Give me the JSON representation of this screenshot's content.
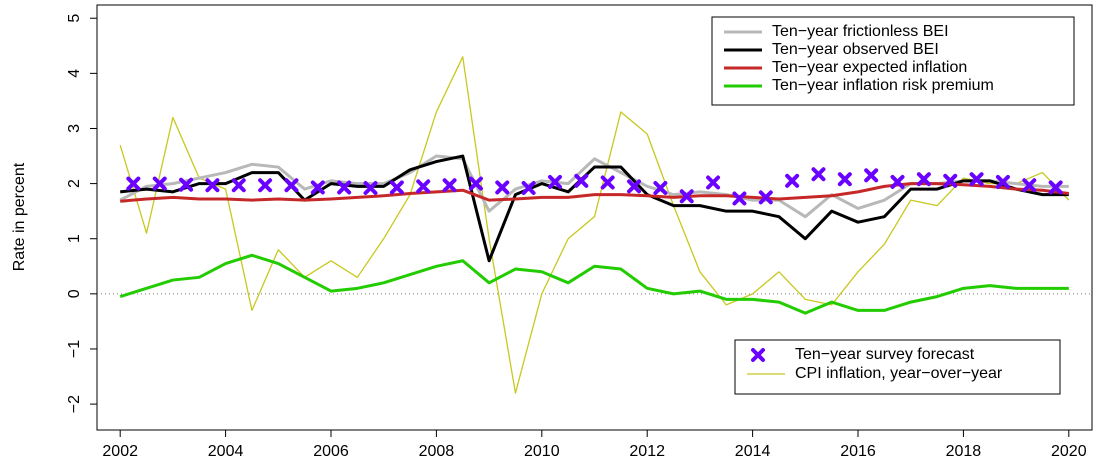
{
  "chart_data": {
    "type": "line",
    "y_label": "Rate in percent",
    "xlim": [
      2001.56,
      2020.44
    ],
    "ylim": [
      -2.47,
      5.24
    ],
    "xticks": [
      2002,
      2004,
      2006,
      2008,
      2010,
      2012,
      2014,
      2016,
      2018,
      2020
    ],
    "yticks": [
      {
        "value": -2,
        "label": "−2"
      },
      {
        "value": -1,
        "label": "−1"
      },
      0,
      1,
      2,
      3,
      4,
      5
    ],
    "reference_line": 0,
    "x": [
      2002,
      2002.5,
      2003,
      2003.5,
      2004,
      2004.5,
      2005,
      2005.5,
      2006,
      2006.5,
      2007,
      2007.5,
      2008,
      2008.5,
      2009,
      2009.5,
      2010,
      2010.5,
      2011,
      2011.5,
      2012,
      2012.5,
      2013,
      2013.5,
      2014,
      2014.5,
      2015,
      2015.5,
      2016,
      2016.5,
      2017,
      2017.5,
      2018,
      2018.5,
      2019,
      2019.5,
      2020
    ],
    "series": [
      {
        "name": "Ten−year frictionless BEI",
        "type": "line",
        "legend": "top-right",
        "color": "#b8b8b8",
        "linewidth": 3,
        "values": [
          1.7,
          1.95,
          2.0,
          2.1,
          2.2,
          2.35,
          2.3,
          1.9,
          2.05,
          2.0,
          2.0,
          2.2,
          2.5,
          2.45,
          1.5,
          1.9,
          2.05,
          2.0,
          2.45,
          2.2,
          1.95,
          1.8,
          1.85,
          1.8,
          1.7,
          1.7,
          1.4,
          1.8,
          1.55,
          1.7,
          2.0,
          2.0,
          2.05,
          2.05,
          2.0,
          1.95,
          1.95
        ]
      },
      {
        "name": "Ten−year observed BEI",
        "type": "line",
        "legend": "top-right",
        "color": "#000000",
        "linewidth": 3,
        "values": [
          1.85,
          1.9,
          1.85,
          2.0,
          2.0,
          2.2,
          2.2,
          1.7,
          2.0,
          1.95,
          1.95,
          2.25,
          2.4,
          2.5,
          0.6,
          1.8,
          2.0,
          1.85,
          2.3,
          2.3,
          1.8,
          1.6,
          1.6,
          1.5,
          1.5,
          1.4,
          1.0,
          1.5,
          1.3,
          1.4,
          1.9,
          1.9,
          2.05,
          2.05,
          1.9,
          1.8,
          1.8
        ]
      },
      {
        "name": "Ten−year expected inflation",
        "type": "line",
        "legend": "top-right",
        "color": "#c62828",
        "linewidth": 3,
        "values": [
          1.68,
          1.72,
          1.75,
          1.72,
          1.72,
          1.7,
          1.72,
          1.7,
          1.72,
          1.75,
          1.78,
          1.82,
          1.85,
          1.88,
          1.7,
          1.72,
          1.75,
          1.75,
          1.8,
          1.8,
          1.78,
          1.75,
          1.78,
          1.78,
          1.75,
          1.72,
          1.75,
          1.78,
          1.85,
          1.95,
          2.0,
          2.0,
          1.98,
          1.95,
          1.9,
          1.88,
          1.82
        ]
      },
      {
        "name": "Ten−year inflation risk premium",
        "type": "line",
        "legend": "top-right",
        "color": "#22cc00",
        "linewidth": 3,
        "values": [
          -0.05,
          0.1,
          0.25,
          0.3,
          0.55,
          0.7,
          0.55,
          0.3,
          0.05,
          0.1,
          0.2,
          0.35,
          0.5,
          0.6,
          0.2,
          0.45,
          0.4,
          0.2,
          0.5,
          0.45,
          0.1,
          0.0,
          0.05,
          -0.1,
          -0.1,
          -0.15,
          -0.35,
          -0.15,
          -0.3,
          -0.3,
          -0.15,
          -0.05,
          0.1,
          0.15,
          0.1,
          0.1,
          0.1
        ]
      },
      {
        "name": "Ten−year survey forecast",
        "type": "scatter",
        "legend": "bottom-right",
        "color": "#6a00ff",
        "x": [
          2002.25,
          2002.75,
          2003.25,
          2003.75,
          2004.25,
          2004.75,
          2005.25,
          2005.75,
          2006.25,
          2006.75,
          2007.25,
          2007.75,
          2008.25,
          2008.75,
          2009.25,
          2009.75,
          2010.25,
          2010.75,
          2011.25,
          2011.75,
          2012.25,
          2012.75,
          2013.25,
          2013.75,
          2014.25,
          2014.75,
          2015.25,
          2015.75,
          2016.25,
          2016.75,
          2017.25,
          2017.75,
          2018.25,
          2018.75,
          2019.25,
          2019.75
        ],
        "values": [
          2.0,
          2.0,
          1.98,
          1.97,
          1.97,
          1.97,
          1.97,
          1.93,
          1.93,
          1.92,
          1.93,
          1.95,
          1.97,
          2.0,
          1.93,
          1.92,
          2.03,
          2.05,
          2.02,
          1.95,
          1.92,
          1.77,
          2.02,
          1.73,
          1.75,
          2.05,
          2.17,
          2.08,
          2.15,
          2.03,
          2.08,
          2.05,
          2.08,
          2.03,
          1.97,
          1.93
        ]
      },
      {
        "name": "CPI inflation, year−over−year",
        "type": "line",
        "legend": "bottom-right",
        "color": "#c8c81e",
        "linewidth": 1.3,
        "values": [
          2.7,
          1.1,
          3.2,
          2.1,
          1.9,
          -0.3,
          0.8,
          0.3,
          0.6,
          0.3,
          1.0,
          1.8,
          3.3,
          4.3,
          1.0,
          -1.8,
          0.0,
          1.0,
          1.4,
          3.3,
          2.9,
          1.6,
          0.4,
          -0.2,
          0.0,
          0.4,
          -0.1,
          -0.2,
          0.4,
          0.9,
          1.7,
          1.6,
          2.1,
          2.0,
          2.0,
          2.2,
          1.7
        ]
      }
    ]
  }
}
